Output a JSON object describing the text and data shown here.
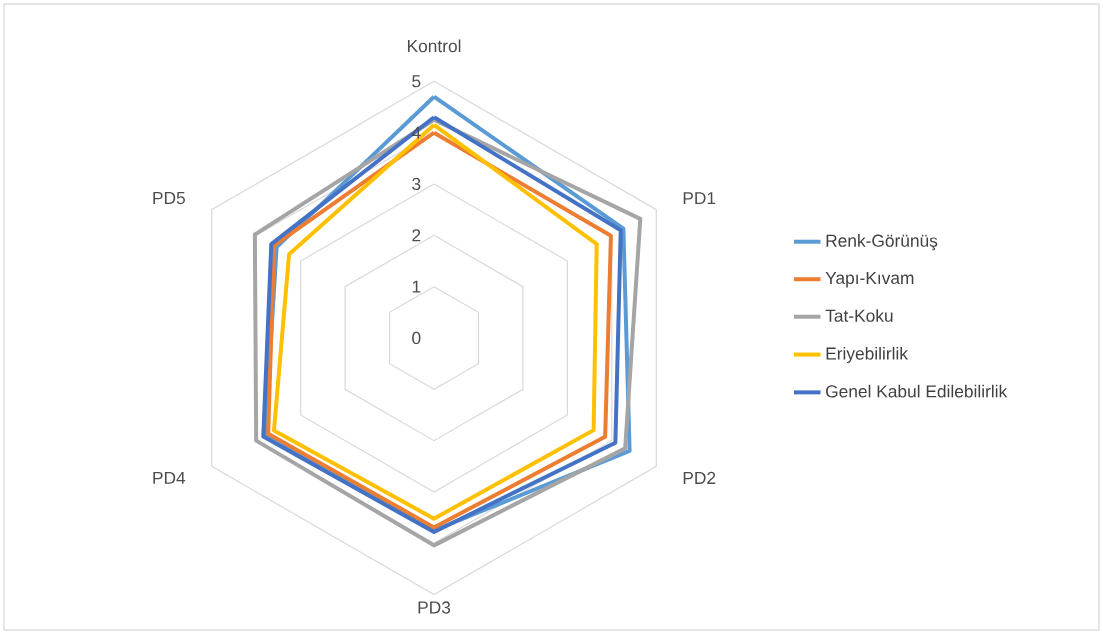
{
  "chart_data": {
    "type": "radar",
    "categories": [
      "Kontrol",
      "PD1",
      "PD2",
      "PD3",
      "PD4",
      "PD5"
    ],
    "ylim": [
      0,
      5
    ],
    "yticks": [
      0,
      1,
      2,
      3,
      4,
      5
    ],
    "grid": true,
    "legend": "right",
    "marker": "none",
    "line_style": "solid",
    "series": [
      {
        "name": "Renk-Görünüş",
        "color": "#5b9bd5",
        "values": [
          4.7,
          4.26,
          4.4,
          3.75,
          3.8,
          3.54
        ]
      },
      {
        "name": "Yapı-Kıvam",
        "color": "#ed7d31",
        "values": [
          4.0,
          3.98,
          3.85,
          3.69,
          3.73,
          3.6
        ]
      },
      {
        "name": "Tat-Koku",
        "color": "#a5a5a5",
        "values": [
          4.25,
          4.64,
          4.3,
          4.04,
          4.0,
          4.03
        ]
      },
      {
        "name": "Eriyebilirlik",
        "color": "#ffc000",
        "values": [
          4.15,
          3.66,
          3.59,
          3.52,
          3.6,
          3.26
        ]
      },
      {
        "name": "Genel Kabul Edilebilirlik",
        "color": "#4472c4",
        "values": [
          4.3,
          4.2,
          4.08,
          3.78,
          3.84,
          3.66
        ]
      }
    ]
  }
}
